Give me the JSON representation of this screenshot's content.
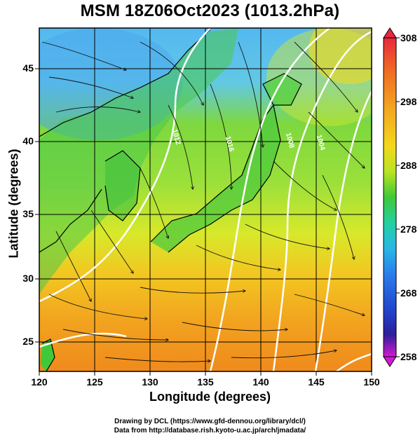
{
  "title": "MSM 18Z06Oct2023 (1013.2hPa)",
  "x_axis": {
    "label": "Longitude (degrees)",
    "ticks": [
      "120",
      "125",
      "130",
      "135",
      "140",
      "145",
      "150"
    ]
  },
  "y_axis": {
    "label": "Latitude  (degrees)",
    "ticks": [
      "25",
      "30",
      "35",
      "40",
      "45"
    ]
  },
  "colorbar": {
    "ticks": [
      "308",
      "298",
      "288",
      "278",
      "268",
      "258"
    ],
    "colors": [
      "#e8283c",
      "#ef7a24",
      "#f5c81a",
      "#d7e81e",
      "#8fd629",
      "#3fc93a",
      "#23d1a0",
      "#29b7e6",
      "#2a78ea",
      "#2142c9",
      "#2c1e9a",
      "#d31ad3"
    ]
  },
  "map": {
    "lon_range": [
      120,
      150
    ],
    "lat_range": [
      22.5,
      47.5
    ],
    "field": "temperature (colored), pressure contours (white), wind streamlines (black)",
    "isobar_labels": [
      "1012",
      "1016",
      "1008",
      "1004"
    ]
  },
  "credits": {
    "line1": "Drawing by DCL (https://www.gfd-dennou.org/library/dcl/)",
    "line2": "Data from http://database.rish.kyoto-u.ac.jp/arch/jmadata/"
  }
}
